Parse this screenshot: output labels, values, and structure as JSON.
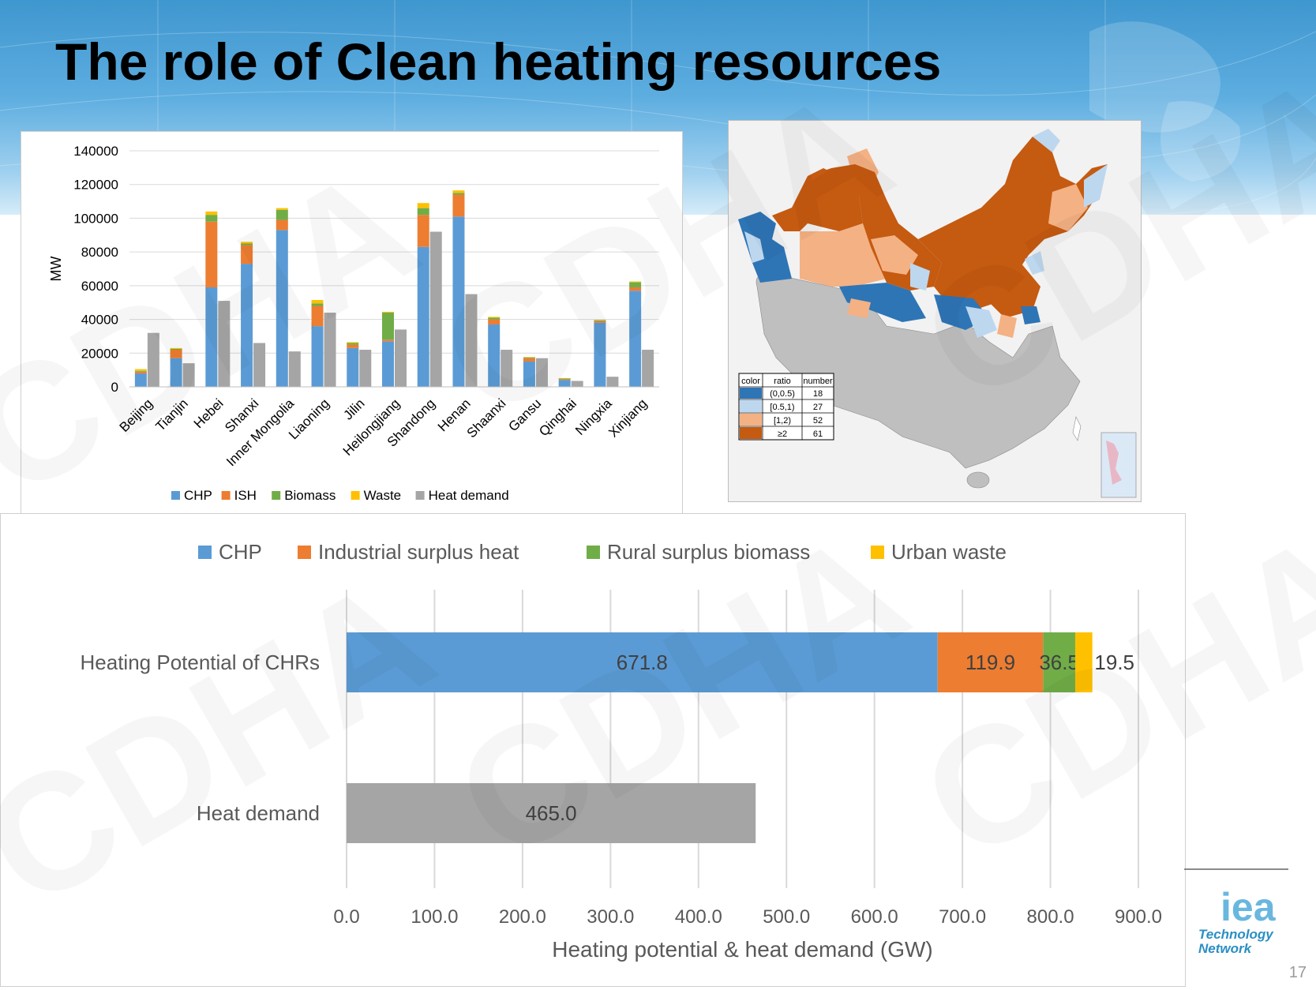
{
  "slide": {
    "title": "The role of Clean heating resources",
    "page_number": "17",
    "watermark": "CDHA",
    "logo": {
      "big": "iea",
      "line1": "Technology",
      "line2": "Network"
    }
  },
  "colors": {
    "chp": "#5b9bd5",
    "ish": "#ed7d31",
    "biomass": "#70ad47",
    "waste": "#ffc000",
    "heat_demand": "#a5a5a5",
    "map_dark_blue": "#2e75b6",
    "map_light_blue": "#bdd7ee",
    "map_light_orange": "#f4b183",
    "map_dark_orange": "#c55a11"
  },
  "chart_data": [
    {
      "type": "bar",
      "stacked": true,
      "ylabel": "MW",
      "ylim": [
        0,
        140000
      ],
      "yticks": [
        "0",
        "20000",
        "40000",
        "60000",
        "80000",
        "100000",
        "120000",
        "140000"
      ],
      "categories": [
        "Beijing",
        "Tianjin",
        "Hebei",
        "Shanxi",
        "Inner Mongolia",
        "Liaoning",
        "Jilin",
        "Heilongjiang",
        "Shandong",
        "Henan",
        "Shaanxi",
        "Gansu",
        "Qinghai",
        "Ningxia",
        "Xinjiang"
      ],
      "series": [
        {
          "name": "CHP",
          "stack": "supply",
          "values": [
            8000,
            17000,
            59000,
            73000,
            93000,
            36000,
            23000,
            27000,
            83000,
            101000,
            37000,
            15000,
            4000,
            38000,
            57000
          ]
        },
        {
          "name": "ISH",
          "stack": "supply",
          "values": [
            1000,
            5000,
            39000,
            11000,
            6000,
            12000,
            2000,
            1000,
            19000,
            13000,
            3000,
            2000,
            500,
            1000,
            2000
          ]
        },
        {
          "name": "Biomass",
          "stack": "supply",
          "values": [
            500,
            500,
            4000,
            1000,
            6000,
            1500,
            1000,
            16000,
            4000,
            1000,
            1000,
            500,
            500,
            500,
            3000
          ]
        },
        {
          "name": "Waste",
          "stack": "supply",
          "values": [
            1000,
            500,
            2000,
            1000,
            1000,
            2000,
            500,
            500,
            3000,
            1500,
            500,
            200,
            200,
            200,
            500
          ]
        },
        {
          "name": "Heat demand",
          "stack": "demand",
          "values": [
            32000,
            14000,
            51000,
            26000,
            21000,
            44000,
            22000,
            34000,
            92000,
            55000,
            22000,
            17000,
            3500,
            6000,
            22000
          ]
        }
      ],
      "legend": [
        "CHP",
        "ISH",
        "Biomass",
        "Waste",
        "Heat demand"
      ],
      "legend_position": "bottom",
      "grid": true
    },
    {
      "type": "bar",
      "orientation": "horizontal",
      "stacked": true,
      "xlabel": "Heating potential & heat demand (GW)",
      "xlim": [
        0,
        900
      ],
      "xticks": [
        "0.0",
        "100.0",
        "200.0",
        "300.0",
        "400.0",
        "500.0",
        "600.0",
        "700.0",
        "800.0",
        "900.0"
      ],
      "categories": [
        "Heating Potential of CHRs",
        "Heat demand"
      ],
      "series": [
        {
          "name": "CHP",
          "values": [
            671.8,
            null
          ],
          "labels": [
            "671.8",
            ""
          ]
        },
        {
          "name": "Industrial surplus heat",
          "values": [
            119.9,
            null
          ],
          "labels": [
            "119.9",
            ""
          ]
        },
        {
          "name": "Rural surplus biomass",
          "values": [
            36.5,
            null
          ],
          "labels": [
            "36.5",
            ""
          ]
        },
        {
          "name": "Urban waste",
          "values": [
            19.5,
            null
          ],
          "labels": [
            "19.5",
            ""
          ]
        },
        {
          "name": "Heat demand",
          "values": [
            null,
            465.0
          ],
          "labels": [
            "",
            "465.0"
          ]
        }
      ],
      "legend": [
        "CHP",
        "Industrial surplus heat",
        "Rural surplus biomass",
        "Urban waste"
      ],
      "legend_position": "top",
      "grid": true
    }
  ],
  "map_legend": {
    "headers": [
      "color",
      "ratio",
      "number"
    ],
    "rows": [
      {
        "ratio": "(0,0.5)",
        "number": "18",
        "color": "#2e75b6"
      },
      {
        "ratio": "[0.5,1)",
        "number": "27",
        "color": "#bdd7ee"
      },
      {
        "ratio": "[1,2)",
        "number": "52",
        "color": "#f4b183"
      },
      {
        "ratio": "≥2",
        "number": "61",
        "color": "#c55a11"
      }
    ]
  }
}
